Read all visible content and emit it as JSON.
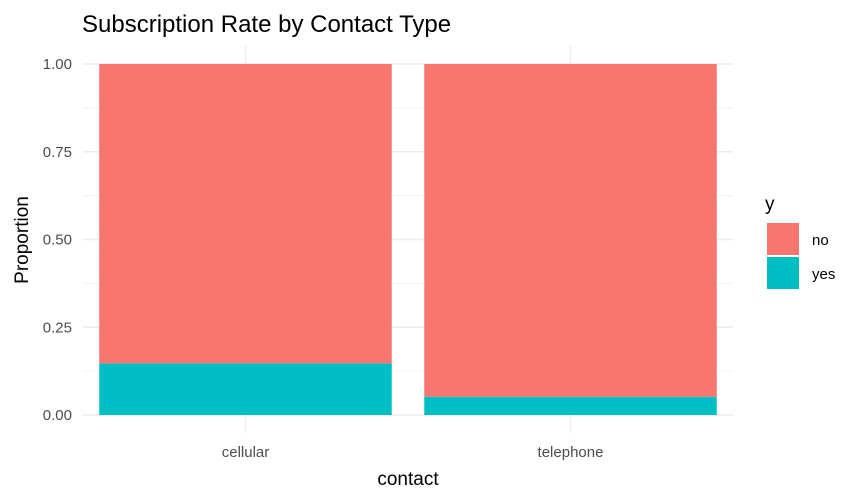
{
  "chart_data": {
    "type": "bar",
    "stacked": true,
    "title": "Subscription Rate by Contact Type",
    "xlabel": "contact",
    "ylabel": "Proportion",
    "categories": [
      "cellular",
      "telephone"
    ],
    "series": [
      {
        "name": "no",
        "values": [
          0.853,
          0.948
        ],
        "color": "#F8766D"
      },
      {
        "name": "yes",
        "values": [
          0.147,
          0.052
        ],
        "color": "#00BFC4"
      }
    ],
    "ylim": [
      0,
      1
    ],
    "yticks": [
      0,
      0.25,
      0.5,
      0.75,
      1
    ],
    "ytick_labels": [
      "0.00",
      "0.25",
      "0.50",
      "0.75",
      "1.00"
    ],
    "grid": true,
    "legend": {
      "title": "y",
      "position": "right",
      "items": [
        "no",
        "yes"
      ]
    }
  }
}
